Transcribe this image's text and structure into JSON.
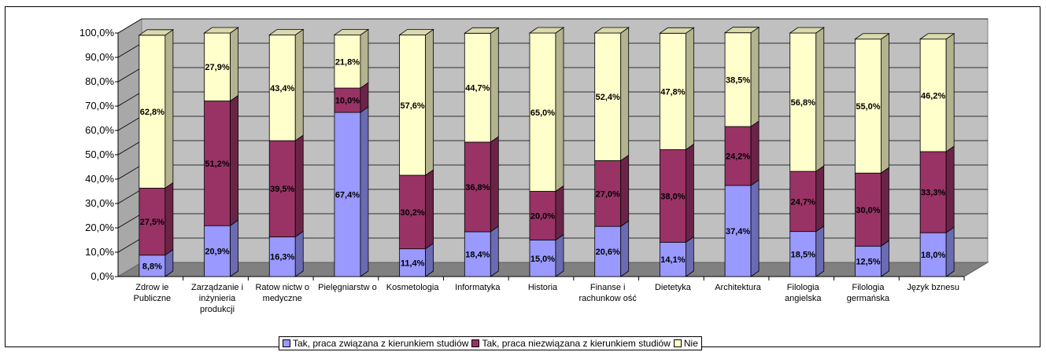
{
  "chart_data": {
    "type": "bar",
    "stacked": true,
    "three_d": true,
    "categories": [
      [
        "Zdrow ie",
        "Publiczne"
      ],
      [
        "Zarządzanie i",
        "inżynieria",
        "produkcji"
      ],
      [
        "Ratow nictw o",
        "medyczne"
      ],
      [
        "Pielęgniarstw o"
      ],
      [
        "Kosmetologia"
      ],
      [
        "Informatyka"
      ],
      [
        "Historia"
      ],
      [
        "Finanse i",
        "rachunkow ość"
      ],
      [
        "Dietetyka"
      ],
      [
        "Architektura"
      ],
      [
        "Filologia",
        "angielska"
      ],
      [
        "Filologia",
        "germańska"
      ],
      [
        "Język bznesu"
      ]
    ],
    "series": [
      {
        "name": "Tak, praca związana z kierunkiem studiów",
        "color": "#9999ff",
        "values": [
          8.8,
          20.9,
          16.3,
          67.4,
          11.4,
          18.4,
          15.0,
          20.6,
          14.1,
          37.4,
          18.5,
          12.5,
          18.0
        ],
        "labels": [
          "8,8%",
          "20,9%",
          "16,3%",
          "67,4%",
          "11,4%",
          "18,4%",
          "15,0%",
          "20,6%",
          "14,1%",
          "37,4%",
          "18,5%",
          "12,5%",
          "18,0%"
        ]
      },
      {
        "name": "Tak, praca niezwiązana z kierunkiem studiów",
        "color": "#993366",
        "values": [
          27.5,
          51.2,
          39.5,
          10.0,
          30.2,
          36.8,
          20.0,
          27.0,
          38.0,
          24.2,
          24.7,
          30.0,
          33.3
        ],
        "labels": [
          "27,5%",
          "51,2%",
          "39,5%",
          "10,0%",
          "30,2%",
          "36,8%",
          "20,0%",
          "27,0%",
          "38,0%",
          "24,2%",
          "24,7%",
          "30,0%",
          "33,3%"
        ]
      },
      {
        "name": "Nie",
        "color": "#ffffcc",
        "values": [
          62.8,
          27.9,
          43.4,
          21.8,
          57.6,
          44.7,
          65.0,
          52.4,
          47.8,
          38.5,
          56.8,
          55.0,
          46.2
        ],
        "labels": [
          "62,8%",
          "27,9%",
          "43,4%",
          "21,8%",
          "57,6%",
          "44,7%",
          "65,0%",
          "52,4%",
          "47,8%",
          "38,5%",
          "56,8%",
          "55,0%",
          "46,2%"
        ]
      }
    ],
    "y_ticks": [
      "0,0%",
      "10,0%",
      "20,0%",
      "30,0%",
      "40,0%",
      "50,0%",
      "60,0%",
      "70,0%",
      "80,0%",
      "90,0%",
      "100,0%"
    ],
    "ylim": [
      0,
      100
    ],
    "grid": true,
    "legend": "bottom",
    "wall_color": "#c0c0c0",
    "floor_color": "#808080"
  }
}
